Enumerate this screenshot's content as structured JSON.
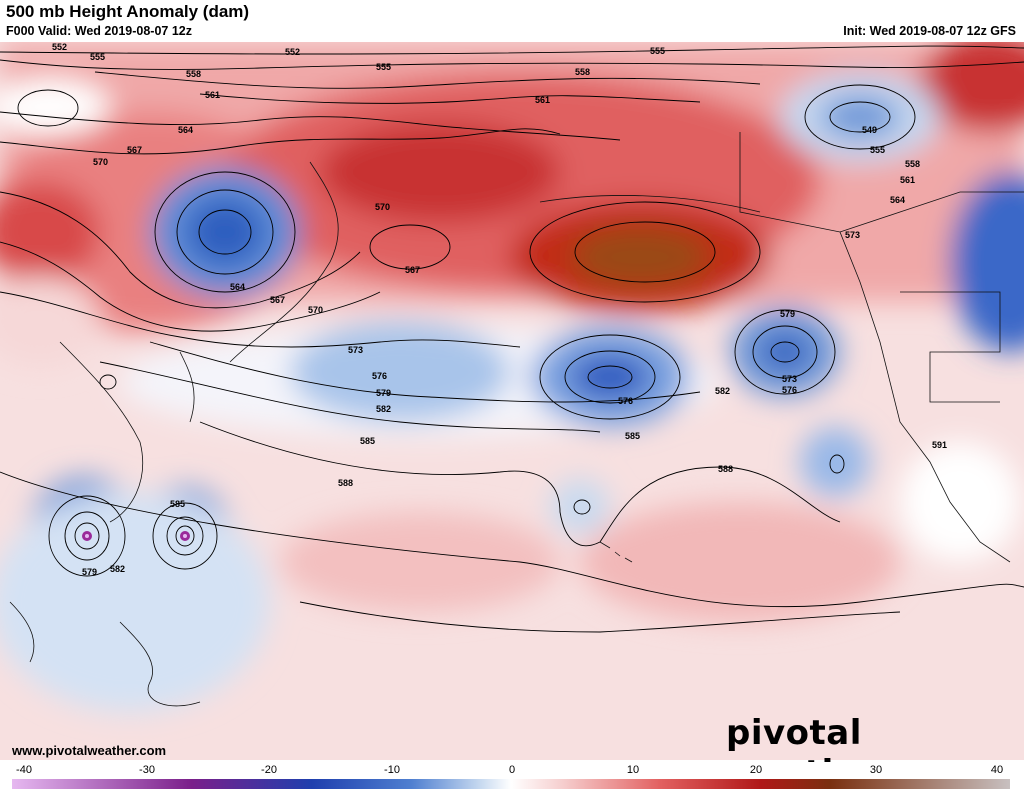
{
  "header": {
    "title": "500 mb Height Anomaly (dam)",
    "valid": "F000 Valid: Wed 2019-08-07 12z",
    "init": "Init: Wed 2019-08-07 12z GFS"
  },
  "branding": {
    "logo_text": "pivotal weather",
    "website": "www.pivotalweather.com"
  },
  "colorbar": {
    "ticks": [
      "-40",
      "-30",
      "-20",
      "-10",
      "0",
      "10",
      "20",
      "30",
      "40"
    ],
    "min": -40,
    "max": 40,
    "colors": {
      "neg_extreme": "#e6b8f0",
      "neg_deep": "#7a1f8a",
      "neg_strong": "#1f3fae",
      "neg_mid": "#4f7fd0",
      "neg_light": "#c8daf0",
      "zero": "#ffffff",
      "pos_light": "#f6d0d0",
      "pos_mid": "#e26060",
      "pos_strong": "#b01818",
      "pos_deep": "#7a3010",
      "pos_extreme": "#c8c0c0"
    }
  },
  "contour_labels": [
    "552",
    "555",
    "552",
    "555",
    "555",
    "558",
    "561",
    "564",
    "567",
    "570",
    "558",
    "561",
    "564",
    "567",
    "570",
    "573",
    "576",
    "579",
    "582",
    "585",
    "588",
    "591",
    "549",
    "555",
    "558",
    "561",
    "564",
    "570",
    "567",
    "573",
    "576",
    "579",
    "582",
    "585",
    "588",
    "579",
    "582",
    "585",
    "573",
    "576"
  ]
}
